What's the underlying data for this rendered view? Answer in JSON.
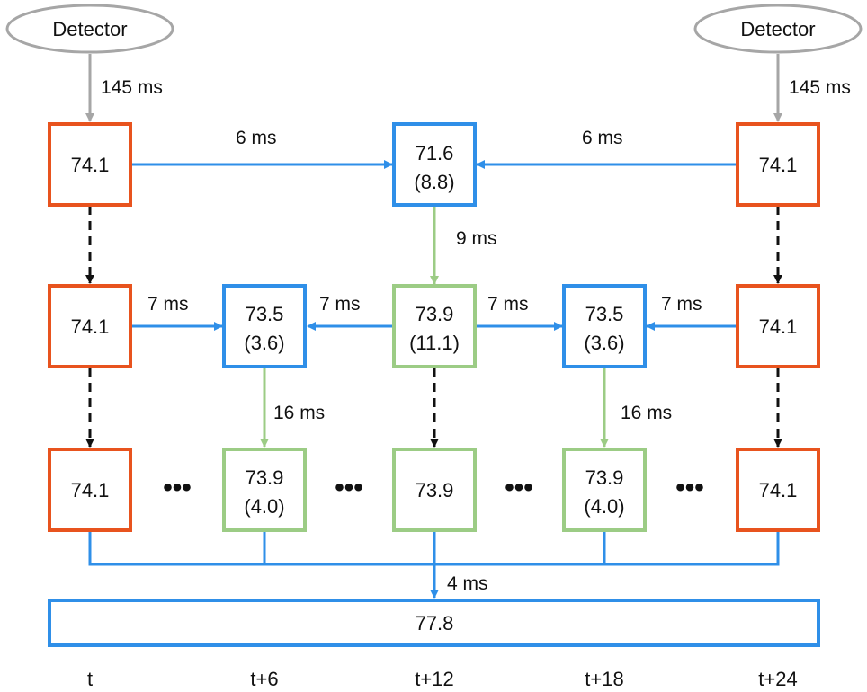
{
  "colors": {
    "orange": "#e8531e",
    "blue": "#2f8fe8",
    "green": "#9ccc85",
    "gray": "#a6a6a6",
    "black": "#111111"
  },
  "detectors": {
    "left": "Detector",
    "right": "Detector"
  },
  "boxes": {
    "r1c1": {
      "value": "74.1",
      "sub": ""
    },
    "r1c3": {
      "value": "71.6",
      "sub": "(8.8)"
    },
    "r1c5": {
      "value": "74.1",
      "sub": ""
    },
    "r2c1": {
      "value": "74.1",
      "sub": ""
    },
    "r2c2": {
      "value": "73.5",
      "sub": "(3.6)"
    },
    "r2c3": {
      "value": "73.9",
      "sub": "(11.1)"
    },
    "r2c4": {
      "value": "73.5",
      "sub": "(3.6)"
    },
    "r2c5": {
      "value": "74.1",
      "sub": ""
    },
    "r3c1": {
      "value": "74.1",
      "sub": ""
    },
    "r3c2": {
      "value": "73.9",
      "sub": "(4.0)"
    },
    "r3c3": {
      "value": "73.9",
      "sub": ""
    },
    "r3c4": {
      "value": "73.9",
      "sub": "(4.0)"
    },
    "r3c5": {
      "value": "74.1",
      "sub": ""
    },
    "result": {
      "value": "77.8"
    }
  },
  "timings": {
    "detector_left": "145 ms",
    "detector_right": "145 ms",
    "r1_left": "6 ms",
    "r1_right": "6 ms",
    "r1_down": "9 ms",
    "r2_a": "7 ms",
    "r2_b": "7 ms",
    "r2_c": "7 ms",
    "r2_d": "7 ms",
    "r2_down_left": "16 ms",
    "r2_down_right": "16 ms",
    "aggregate": "4 ms"
  },
  "ellipsis": "•••",
  "time_labels": [
    "t",
    "t+6",
    "t+12",
    "t+18",
    "t+24"
  ]
}
